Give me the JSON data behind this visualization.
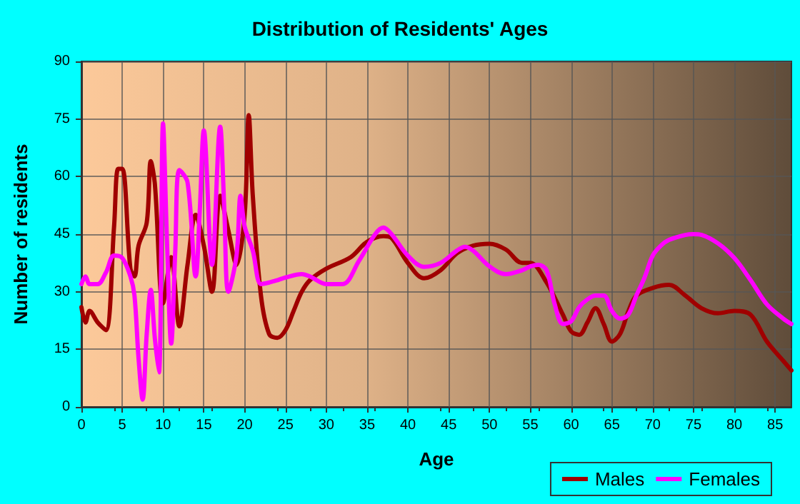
{
  "chart_data": {
    "type": "line",
    "title": "Distribution of Residents' Ages",
    "xlabel": "Age",
    "ylabel": "Number of residents",
    "xlim": [
      0,
      87
    ],
    "xticks": [
      0,
      5,
      10,
      15,
      20,
      25,
      30,
      35,
      40,
      45,
      50,
      55,
      60,
      65,
      70,
      75,
      80,
      85
    ],
    "ylim": [
      0,
      90
    ],
    "yticks": [
      0,
      15,
      30,
      45,
      60,
      75,
      90
    ],
    "grid": true,
    "legend": "bottom right",
    "marker": "none",
    "line_style": "solid",
    "series": [
      {
        "name": "Males",
        "color": "#a00000",
        "x": [
          0,
          0.5,
          1,
          2,
          3,
          4,
          4.5,
          5,
          6,
          6.5,
          7,
          8,
          8.5,
          9,
          10,
          11,
          12,
          13,
          14,
          15,
          16,
          17,
          18,
          19,
          20,
          20.5,
          21,
          22,
          23,
          24,
          25,
          26,
          27,
          28,
          30,
          33,
          35,
          37,
          38,
          40,
          42,
          44,
          46,
          48,
          50,
          52,
          54,
          55,
          57,
          59,
          60,
          61,
          62,
          63,
          64,
          65,
          66,
          67,
          68,
          70,
          72,
          74,
          76,
          78,
          80,
          82,
          84,
          86,
          87
        ],
        "values": [
          26,
          22,
          25,
          22,
          20,
          47,
          62,
          62,
          36,
          34,
          42,
          48,
          64,
          58,
          27,
          39,
          21,
          37,
          50,
          42,
          30,
          55,
          46,
          37,
          50,
          76,
          55,
          29,
          19,
          18,
          20,
          25,
          30,
          33,
          36,
          39,
          43,
          44.5,
          44,
          37.5,
          33.5,
          35.6,
          40,
          42,
          42.5,
          41,
          37.5,
          37.5,
          32.4,
          24,
          19.7,
          18.8,
          22,
          25.7,
          21.6,
          17,
          19,
          24.8,
          29,
          31,
          31.8,
          29,
          25.7,
          24.4,
          25,
          24,
          17,
          12,
          9.5
        ]
      },
      {
        "name": "Females",
        "color": "#ff00ff",
        "x": [
          0,
          0.5,
          1,
          2,
          3,
          4,
          5,
          6,
          6.5,
          7,
          7.5,
          8,
          8.5,
          9,
          9.5,
          10,
          10.5,
          11,
          11.5,
          12,
          13,
          14,
          14.5,
          15,
          16,
          17,
          17.5,
          18,
          19,
          19.5,
          20,
          21,
          22,
          23,
          24,
          25,
          27,
          28,
          30,
          32,
          34,
          36,
          37,
          38,
          40,
          42,
          44,
          46,
          47,
          48,
          50,
          52,
          54,
          55,
          56,
          57,
          58,
          59,
          60,
          61,
          62,
          63,
          64,
          65,
          66,
          67,
          68,
          69,
          70,
          71,
          72,
          74,
          75,
          76,
          78,
          80,
          82,
          84,
          86,
          87
        ],
        "values": [
          32,
          34,
          32,
          32,
          35,
          39.4,
          38.8,
          34,
          29,
          12.7,
          1.9,
          19,
          30.5,
          17.8,
          9,
          73.8,
          42,
          16.5,
          40.7,
          61.7,
          58.5,
          34,
          51,
          72,
          37,
          73,
          52,
          30,
          39.4,
          55,
          47,
          40.7,
          32,
          32.4,
          33,
          33.7,
          34.6,
          34,
          32,
          32,
          38,
          45,
          46.7,
          45,
          39.4,
          36.5,
          37.5,
          40.7,
          41.7,
          40.7,
          36.6,
          34.6,
          35.6,
          36.6,
          37,
          35.6,
          26.7,
          21.6,
          22.3,
          26,
          28,
          29,
          29,
          25,
          23,
          24,
          29,
          33.7,
          39.4,
          42,
          43.5,
          44.8,
          45,
          44.8,
          42.6,
          38.8,
          33,
          26.7,
          23,
          21.6
        ]
      }
    ]
  }
}
